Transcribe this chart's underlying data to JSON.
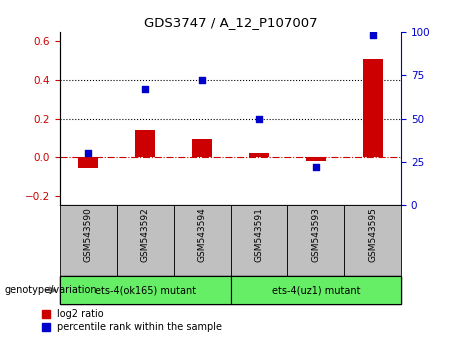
{
  "title": "GDS3747 / A_12_P107007",
  "samples": [
    "GSM543590",
    "GSM543592",
    "GSM543594",
    "GSM543591",
    "GSM543593",
    "GSM543595"
  ],
  "log2_ratio": [
    -0.055,
    0.14,
    0.095,
    0.02,
    -0.02,
    0.51
  ],
  "percentile_rank": [
    30,
    67,
    72,
    50,
    22,
    98
  ],
  "ylim_left": [
    -0.25,
    0.65
  ],
  "ylim_right": [
    0,
    100
  ],
  "yticks_left": [
    -0.2,
    0.0,
    0.2,
    0.4,
    0.6
  ],
  "yticks_right": [
    0,
    25,
    50,
    75,
    100
  ],
  "hlines": [
    0.2,
    0.4
  ],
  "group1_label": "ets-4(ok165) mutant",
  "group2_label": "ets-4(uz1) mutant",
  "bar_color": "#cc0000",
  "dot_color": "#0000cc",
  "genotype_label": "genotype/variation",
  "legend_bar": "log2 ratio",
  "legend_dot": "percentile rank within the sample",
  "sample_bg_group1": "#c0c0c0",
  "sample_bg_group2": "#c0c0c0",
  "geno_bg": "#66ee66",
  "bar_width": 0.35,
  "zero_line_color": "#cc0000",
  "hline_color": "#000000",
  "spine_color_left": "#cc0000",
  "spine_color_right": "#0000cc"
}
